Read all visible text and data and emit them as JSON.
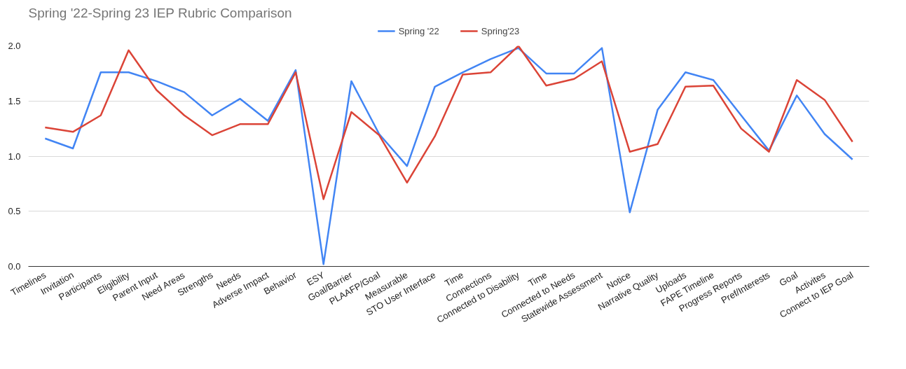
{
  "chart_data": {
    "type": "line",
    "title": "Spring '22-Spring 23 IEP Rubric Comparison",
    "categories": [
      "Timelines",
      "Invitation",
      "Participants",
      "Eligibility",
      "Parent Input",
      "Need Areas",
      "Strengths",
      "Needs",
      "Adverse Impact",
      "Behavior",
      "ESY",
      "Goal/Barrier",
      "PLAAFP/Goal",
      "Measurable",
      "STO User Interface",
      "Time",
      "Connections",
      "Connected to Disability",
      "Time",
      "Connected to Needs",
      "Statewide Assessment",
      "Notice",
      "Narrative Quality",
      "Uploads",
      "FAPE Timeline",
      "Progress Reports",
      "Pref/Interests",
      "Goal",
      "Activites",
      "Connect to IEP Goal"
    ],
    "series": [
      {
        "name": "Spring '22",
        "color": "#4285f4",
        "values": [
          1.16,
          1.07,
          1.76,
          1.76,
          1.68,
          1.58,
          1.37,
          1.52,
          1.32,
          1.78,
          0.02,
          1.68,
          1.2,
          0.91,
          1.63,
          1.76,
          1.88,
          1.98,
          1.75,
          1.75,
          1.98,
          0.49,
          1.42,
          1.76,
          1.69,
          1.37,
          1.05,
          1.55,
          1.2,
          0.97
        ]
      },
      {
        "name": "Spring'23",
        "color": "#db4437",
        "values": [
          1.26,
          1.22,
          1.37,
          1.96,
          1.6,
          1.37,
          1.19,
          1.29,
          1.29,
          1.76,
          0.61,
          1.4,
          1.19,
          0.76,
          1.18,
          1.74,
          1.76,
          2.0,
          1.64,
          1.7,
          1.86,
          1.04,
          1.11,
          1.63,
          1.64,
          1.25,
          1.04,
          1.69,
          1.51,
          1.13
        ]
      }
    ],
    "ylim": [
      0,
      2.0
    ],
    "yticks": [
      {
        "value": 0,
        "label": "0.0"
      },
      {
        "value": 0.5,
        "label": "0.5"
      },
      {
        "value": 1,
        "label": "1.0"
      },
      {
        "value": 1.5,
        "label": "1.5"
      },
      {
        "value": 2,
        "label": "2.0"
      }
    ],
    "grid": "y",
    "legend": "top",
    "marker": "none",
    "line_style": "solid"
  }
}
